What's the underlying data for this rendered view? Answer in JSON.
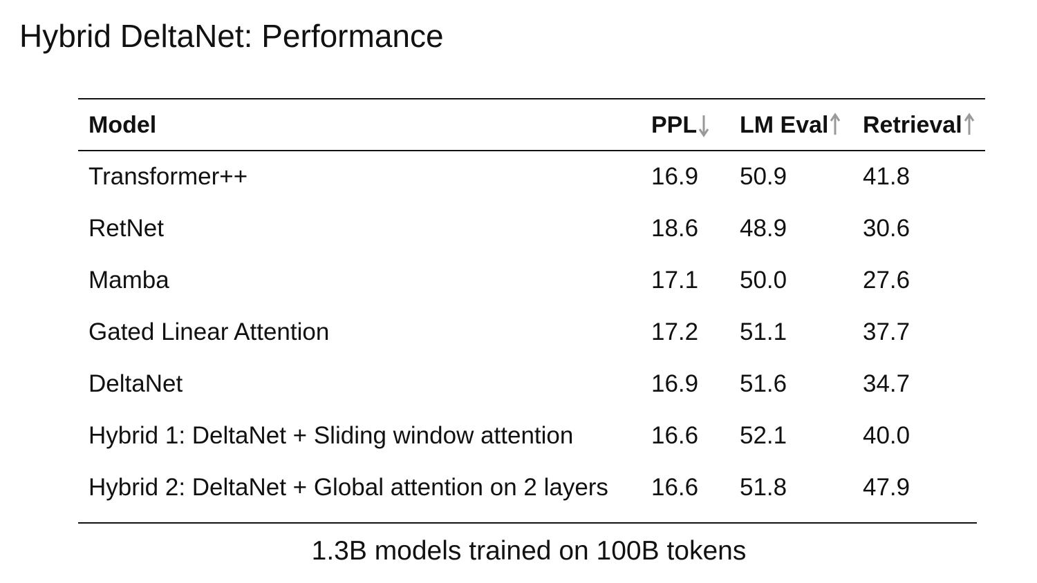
{
  "title": "Hybrid DeltaNet: Performance",
  "table": {
    "header": [
      "Model",
      "PPL",
      "LM Eval",
      "Retrieval"
    ],
    "rows": [
      [
        "Transformer++",
        "16.9",
        "50.9",
        "41.8"
      ],
      [
        "RetNet",
        "18.6",
        "48.9",
        "30.6"
      ],
      [
        "Mamba",
        "17.1",
        "50.0",
        "27.6"
      ],
      [
        "Gated Linear Attention",
        "17.2",
        "51.1",
        "37.7"
      ],
      [
        "DeltaNet",
        "16.9",
        "51.6",
        "34.7"
      ],
      [
        "Hybrid 1: DeltaNet + Sliding window attention",
        "16.6",
        "52.1",
        "40.0"
      ],
      [
        "Hybrid 2: DeltaNet + Global attention on 2 layers",
        "16.6",
        "51.8",
        "47.9"
      ]
    ]
  },
  "caption": "1.3B models trained on 100B tokens"
}
